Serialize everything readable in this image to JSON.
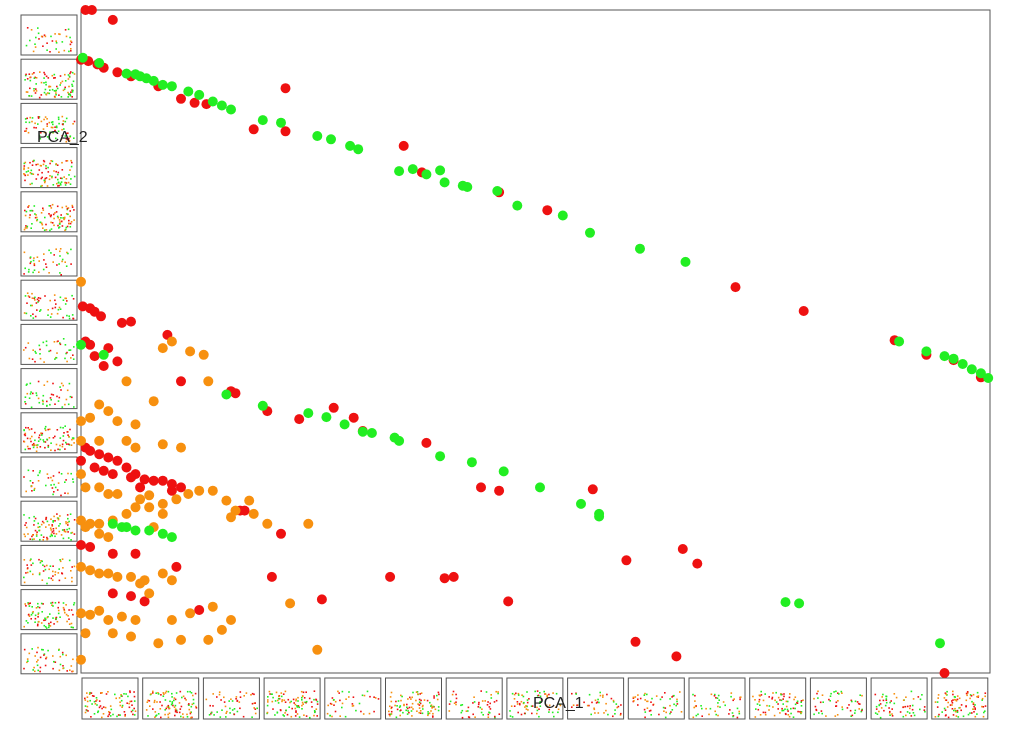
{
  "colors": {
    "red": "#ee1111",
    "orange": "#f7900f",
    "green": "#22ee22",
    "frame": "#555555"
  },
  "chart_data": {
    "type": "scatter",
    "xlabel": "PCA_1",
    "ylabel": "PCA_2",
    "xlim": [
      0,
      1
    ],
    "ylim": [
      0,
      1
    ],
    "side_thumbnails": 15,
    "bottom_thumbnails": 15,
    "series": [
      {
        "color": "red",
        "points": [
          [
            0.005,
            1.0
          ],
          [
            0.012,
            1.0
          ],
          [
            0.035,
            0.985
          ],
          [
            0.0,
            0.925
          ],
          [
            0.008,
            0.923
          ],
          [
            0.018,
            0.918
          ],
          [
            0.025,
            0.913
          ],
          [
            0.04,
            0.906
          ],
          [
            0.055,
            0.9
          ],
          [
            0.085,
            0.885
          ],
          [
            0.11,
            0.866
          ],
          [
            0.125,
            0.86
          ],
          [
            0.138,
            0.858
          ],
          [
            0.19,
            0.82
          ],
          [
            0.225,
            0.882
          ],
          [
            0.225,
            0.817
          ],
          [
            0.355,
            0.795
          ],
          [
            0.375,
            0.755
          ],
          [
            0.46,
            0.725
          ],
          [
            0.513,
            0.698
          ],
          [
            0.72,
            0.582
          ],
          [
            0.795,
            0.546
          ],
          [
            0.895,
            0.502
          ],
          [
            0.93,
            0.48
          ],
          [
            0.96,
            0.472
          ],
          [
            0.99,
            0.446
          ],
          [
            0.002,
            0.553
          ],
          [
            0.01,
            0.55
          ],
          [
            0.015,
            0.545
          ],
          [
            0.022,
            0.538
          ],
          [
            0.045,
            0.528
          ],
          [
            0.055,
            0.53
          ],
          [
            0.095,
            0.51
          ],
          [
            0.005,
            0.5
          ],
          [
            0.01,
            0.495
          ],
          [
            0.03,
            0.49
          ],
          [
            0.04,
            0.47
          ],
          [
            0.025,
            0.463
          ],
          [
            0.015,
            0.478
          ],
          [
            0.11,
            0.44
          ],
          [
            0.165,
            0.425
          ],
          [
            0.17,
            0.422
          ],
          [
            0.205,
            0.395
          ],
          [
            0.24,
            0.383
          ],
          [
            0.278,
            0.4
          ],
          [
            0.3,
            0.385
          ],
          [
            0.31,
            0.365
          ],
          [
            0.38,
            0.347
          ],
          [
            0.005,
            0.34
          ],
          [
            0.01,
            0.335
          ],
          [
            0.02,
            0.33
          ],
          [
            0.03,
            0.325
          ],
          [
            0.04,
            0.32
          ],
          [
            0.05,
            0.31
          ],
          [
            0.06,
            0.3
          ],
          [
            0.07,
            0.292
          ],
          [
            0.08,
            0.29
          ],
          [
            0.09,
            0.29
          ],
          [
            0.1,
            0.285
          ],
          [
            0.11,
            0.28
          ],
          [
            0.0,
            0.32
          ],
          [
            0.015,
            0.31
          ],
          [
            0.025,
            0.305
          ],
          [
            0.035,
            0.3
          ],
          [
            0.055,
            0.295
          ],
          [
            0.065,
            0.28
          ],
          [
            0.1,
            0.275
          ],
          [
            0.175,
            0.245
          ],
          [
            0.18,
            0.245
          ],
          [
            0.22,
            0.21
          ],
          [
            0.44,
            0.28
          ],
          [
            0.46,
            0.275
          ],
          [
            0.563,
            0.277
          ],
          [
            0.0,
            0.193
          ],
          [
            0.01,
            0.19
          ],
          [
            0.035,
            0.18
          ],
          [
            0.06,
            0.18
          ],
          [
            0.105,
            0.16
          ],
          [
            0.21,
            0.145
          ],
          [
            0.265,
            0.111
          ],
          [
            0.34,
            0.145
          ],
          [
            0.41,
            0.145
          ],
          [
            0.035,
            0.12
          ],
          [
            0.055,
            0.116
          ],
          [
            0.07,
            0.108
          ],
          [
            0.13,
            0.095
          ],
          [
            0.4,
            0.143
          ],
          [
            0.47,
            0.108
          ],
          [
            0.6,
            0.17
          ],
          [
            0.61,
            0.047
          ],
          [
            0.655,
            0.025
          ],
          [
            0.678,
            0.165
          ],
          [
            0.662,
            0.187
          ],
          [
            0.95,
            0.0
          ]
        ]
      },
      {
        "color": "orange",
        "points": [
          [
            0.0,
            0.59
          ],
          [
            0.08,
            0.41
          ],
          [
            0.09,
            0.49
          ],
          [
            0.1,
            0.5
          ],
          [
            0.12,
            0.485
          ],
          [
            0.135,
            0.48
          ],
          [
            0.14,
            0.44
          ],
          [
            0.05,
            0.44
          ],
          [
            0.02,
            0.405
          ],
          [
            0.03,
            0.395
          ],
          [
            0.0,
            0.38
          ],
          [
            0.01,
            0.385
          ],
          [
            0.04,
            0.38
          ],
          [
            0.06,
            0.375
          ],
          [
            0.0,
            0.35
          ],
          [
            0.02,
            0.35
          ],
          [
            0.05,
            0.35
          ],
          [
            0.09,
            0.345
          ],
          [
            0.11,
            0.34
          ],
          [
            0.06,
            0.34
          ],
          [
            0.0,
            0.3
          ],
          [
            0.005,
            0.28
          ],
          [
            0.02,
            0.28
          ],
          [
            0.03,
            0.27
          ],
          [
            0.04,
            0.27
          ],
          [
            0.065,
            0.262
          ],
          [
            0.075,
            0.268
          ],
          [
            0.09,
            0.255
          ],
          [
            0.105,
            0.262
          ],
          [
            0.118,
            0.27
          ],
          [
            0.13,
            0.275
          ],
          [
            0.145,
            0.275
          ],
          [
            0.16,
            0.26
          ],
          [
            0.17,
            0.245
          ],
          [
            0.0,
            0.23
          ],
          [
            0.01,
            0.225
          ],
          [
            0.02,
            0.225
          ],
          [
            0.035,
            0.23
          ],
          [
            0.05,
            0.24
          ],
          [
            0.06,
            0.25
          ],
          [
            0.005,
            0.22
          ],
          [
            0.02,
            0.21
          ],
          [
            0.03,
            0.205
          ],
          [
            0.0,
            0.16
          ],
          [
            0.01,
            0.155
          ],
          [
            0.02,
            0.15
          ],
          [
            0.03,
            0.15
          ],
          [
            0.04,
            0.145
          ],
          [
            0.055,
            0.145
          ],
          [
            0.075,
            0.25
          ],
          [
            0.08,
            0.22
          ],
          [
            0.09,
            0.24
          ],
          [
            0.185,
            0.26
          ],
          [
            0.205,
            0.225
          ],
          [
            0.165,
            0.235
          ],
          [
            0.07,
            0.14
          ],
          [
            0.09,
            0.15
          ],
          [
            0.1,
            0.14
          ],
          [
            0.065,
            0.135
          ],
          [
            0.075,
            0.12
          ],
          [
            0.0,
            0.09
          ],
          [
            0.01,
            0.088
          ],
          [
            0.02,
            0.094
          ],
          [
            0.03,
            0.08
          ],
          [
            0.045,
            0.085
          ],
          [
            0.06,
            0.08
          ],
          [
            0.1,
            0.08
          ],
          [
            0.11,
            0.05
          ],
          [
            0.14,
            0.05
          ],
          [
            0.165,
            0.08
          ],
          [
            0.155,
            0.065
          ],
          [
            0.23,
            0.105
          ],
          [
            0.25,
            0.225
          ],
          [
            0.19,
            0.24
          ],
          [
            0.0,
            0.02
          ],
          [
            0.26,
            0.035
          ],
          [
            0.005,
            0.06
          ],
          [
            0.035,
            0.06
          ],
          [
            0.055,
            0.055
          ],
          [
            0.085,
            0.045
          ],
          [
            0.12,
            0.09
          ],
          [
            0.145,
            0.1
          ]
        ]
      },
      {
        "color": "green",
        "points": [
          [
            0.002,
            0.928
          ],
          [
            0.02,
            0.92
          ],
          [
            0.05,
            0.904
          ],
          [
            0.06,
            0.903
          ],
          [
            0.065,
            0.9
          ],
          [
            0.072,
            0.897
          ],
          [
            0.08,
            0.893
          ],
          [
            0.09,
            0.887
          ],
          [
            0.1,
            0.885
          ],
          [
            0.118,
            0.877
          ],
          [
            0.13,
            0.872
          ],
          [
            0.145,
            0.862
          ],
          [
            0.155,
            0.856
          ],
          [
            0.165,
            0.85
          ],
          [
            0.2,
            0.834
          ],
          [
            0.22,
            0.83
          ],
          [
            0.26,
            0.81
          ],
          [
            0.275,
            0.805
          ],
          [
            0.296,
            0.795
          ],
          [
            0.305,
            0.79
          ],
          [
            0.35,
            0.757
          ],
          [
            0.365,
            0.76
          ],
          [
            0.38,
            0.752
          ],
          [
            0.395,
            0.758
          ],
          [
            0.4,
            0.74
          ],
          [
            0.42,
            0.735
          ],
          [
            0.425,
            0.733
          ],
          [
            0.458,
            0.727
          ],
          [
            0.48,
            0.705
          ],
          [
            0.53,
            0.69
          ],
          [
            0.56,
            0.664
          ],
          [
            0.615,
            0.64
          ],
          [
            0.665,
            0.62
          ],
          [
            0.9,
            0.5
          ],
          [
            0.93,
            0.485
          ],
          [
            0.95,
            0.478
          ],
          [
            0.96,
            0.474
          ],
          [
            0.97,
            0.466
          ],
          [
            0.98,
            0.458
          ],
          [
            0.99,
            0.452
          ],
          [
            0.998,
            0.445
          ],
          [
            0.0,
            0.495
          ],
          [
            0.025,
            0.48
          ],
          [
            0.16,
            0.42
          ],
          [
            0.2,
            0.403
          ],
          [
            0.25,
            0.392
          ],
          [
            0.27,
            0.386
          ],
          [
            0.29,
            0.375
          ],
          [
            0.31,
            0.364
          ],
          [
            0.32,
            0.362
          ],
          [
            0.345,
            0.355
          ],
          [
            0.35,
            0.35
          ],
          [
            0.395,
            0.327
          ],
          [
            0.43,
            0.318
          ],
          [
            0.465,
            0.304
          ],
          [
            0.505,
            0.28
          ],
          [
            0.55,
            0.255
          ],
          [
            0.57,
            0.24
          ],
          [
            0.035,
            0.225
          ],
          [
            0.045,
            0.22
          ],
          [
            0.05,
            0.22
          ],
          [
            0.06,
            0.215
          ],
          [
            0.075,
            0.215
          ],
          [
            0.09,
            0.21
          ],
          [
            0.1,
            0.205
          ],
          [
            0.57,
            0.236
          ],
          [
            0.775,
            0.107
          ],
          [
            0.79,
            0.105
          ],
          [
            0.945,
            0.045
          ]
        ]
      }
    ]
  }
}
